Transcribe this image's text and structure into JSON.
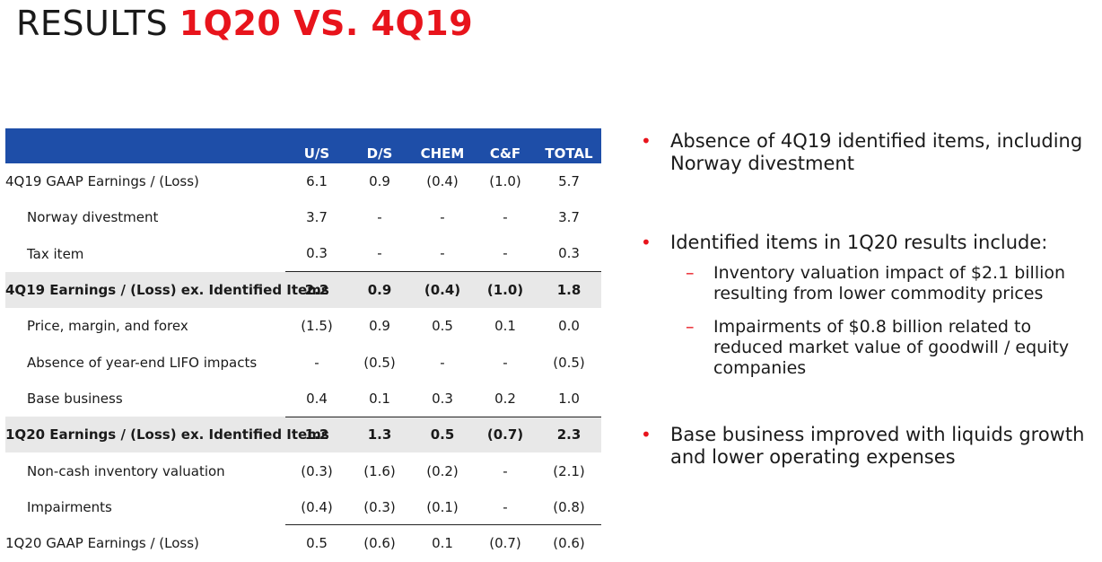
{
  "title": {
    "plain": "RESULTS",
    "accent": "1Q20 VS. 4Q19"
  },
  "table": {
    "headers": [
      "",
      "U/S",
      "D/S",
      "CHEM",
      "C&F",
      "TOTAL"
    ],
    "rows": [
      {
        "label": "4Q19 GAAP Earnings / (Loss)",
        "values": [
          "6.1",
          "0.9",
          "(0.4)",
          "(1.0)",
          "5.7"
        ]
      },
      {
        "label": "Norway divestment",
        "values": [
          "3.7",
          "-",
          "-",
          "-",
          "3.7"
        ]
      },
      {
        "label": "Tax item",
        "values": [
          "0.3",
          "-",
          "-",
          "-",
          "0.3"
        ]
      },
      {
        "label": "4Q19 Earnings / (Loss) ex. Identified Items",
        "values": [
          "2.2",
          "0.9",
          "(0.4)",
          "(1.0)",
          "1.8"
        ]
      },
      {
        "label": "Price, margin, and forex",
        "values": [
          "(1.5)",
          "0.9",
          "0.5",
          "0.1",
          "0.0"
        ]
      },
      {
        "label": "Absence of year-end LIFO impacts",
        "values": [
          "-",
          "(0.5)",
          "-",
          "-",
          "(0.5)"
        ]
      },
      {
        "label": "Base business",
        "values": [
          "0.4",
          "0.1",
          "0.3",
          "0.2",
          "1.0"
        ]
      },
      {
        "label": "1Q20 Earnings / (Loss) ex. Identified Items",
        "values": [
          "1.2",
          "1.3",
          "0.5",
          "(0.7)",
          "2.3"
        ]
      },
      {
        "label": "Non-cash inventory valuation",
        "values": [
          "(0.3)",
          "(1.6)",
          "(0.2)",
          "-",
          "(2.1)"
        ]
      },
      {
        "label": "Impairments",
        "values": [
          "(0.4)",
          "(0.3)",
          "(0.1)",
          "-",
          "(0.8)"
        ]
      },
      {
        "label": "1Q20 GAAP Earnings / (Loss)",
        "values": [
          "0.5",
          "(0.6)",
          "0.1",
          "(0.7)",
          "(0.6)"
        ]
      }
    ]
  },
  "bullets": {
    "b1": "Absence of 4Q19 identified items, including Norway divestment",
    "b2": "Identified items in 1Q20 results include:",
    "b2_sub1": "Inventory valuation impact of $2.1 billion resulting from lower commodity prices",
    "b2_sub2": "Impairments of $0.8 billion related to reduced market value of goodwill / equity companies",
    "b3": "Base business improved with liquids growth and lower operating expenses"
  },
  "glyphs": {
    "bullet": "•",
    "dash": "–"
  },
  "colors": {
    "accent": "#e8141c",
    "header_bg": "#1e4ea8",
    "subtotal_bg": "#e8e8e8"
  }
}
